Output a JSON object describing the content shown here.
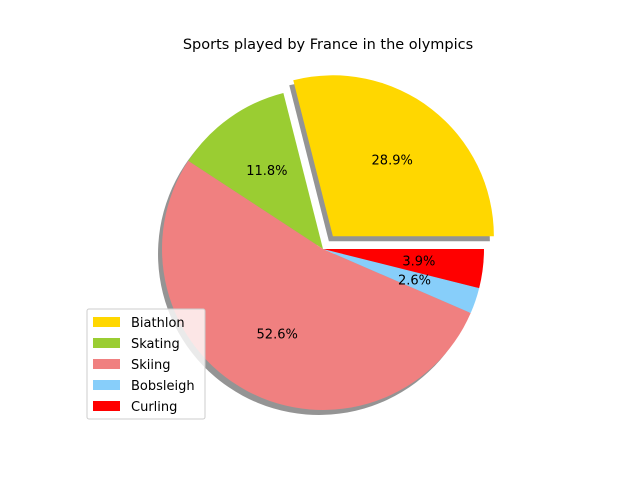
{
  "chart_data": {
    "type": "pie",
    "title": "Sports played by France in the olympics",
    "categories": [
      "Biathlon",
      "Skating",
      "Skiing",
      "Bobsleigh",
      "Curling"
    ],
    "values": [
      28.9,
      11.8,
      52.6,
      2.6,
      3.9
    ],
    "labels": [
      "28.9%",
      "11.8%",
      "52.6%",
      "2.6%",
      "3.9%"
    ],
    "colors": [
      "#ffd700",
      "#9acd32",
      "#f08080",
      "#87cefa",
      "#ff0000"
    ],
    "explode": [
      0.1,
      0,
      0,
      0,
      0
    ],
    "start_angle": 0,
    "shadow": true,
    "legend": {
      "placement": "lower-left",
      "entries": [
        "Biathlon",
        "Skating",
        "Skiing",
        "Bobsleigh",
        "Curling"
      ]
    }
  }
}
